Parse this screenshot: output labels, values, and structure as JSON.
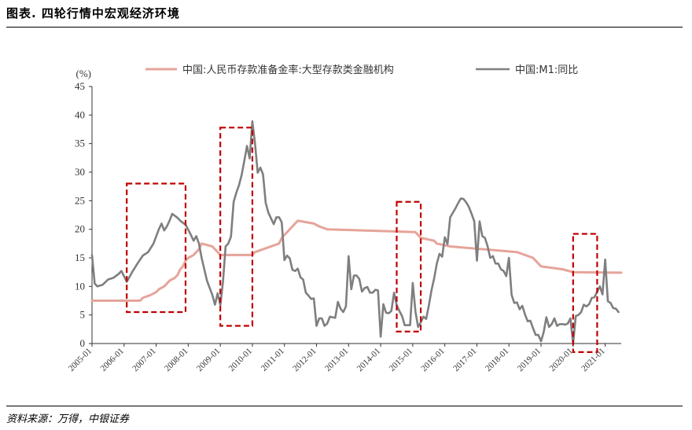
{
  "header": {
    "title": "图表. 四轮行情中宏观经济环境"
  },
  "footer": {
    "source": "资料来源：万得，中银证券"
  },
  "chart_data": {
    "type": "line",
    "ylabel": "(%)",
    "ylim": [
      0,
      45
    ],
    "yticks": [
      0,
      5,
      10,
      15,
      20,
      25,
      30,
      35,
      40,
      45
    ],
    "x_range": [
      "2005-01",
      "2021-07"
    ],
    "xticks": [
      "2005-01",
      "2006-01",
      "2007-01",
      "2008-01",
      "2009-01",
      "2010-01",
      "2011-01",
      "2012-01",
      "2013-01",
      "2014-01",
      "2015-01",
      "2016-01",
      "2017-01",
      "2018-01",
      "2019-01",
      "2020-01",
      "2021-01"
    ],
    "legend_position": "top",
    "grid": false,
    "series": [
      {
        "name": "中国:人民币存款准备金率:大型存款类金融机构",
        "color": "#e6a49a",
        "points": [
          [
            "2005-01",
            7.5
          ],
          [
            "2006-07",
            7.5
          ],
          [
            "2006-08",
            8
          ],
          [
            "2006-11",
            8.5
          ],
          [
            "2007-01",
            9
          ],
          [
            "2007-02",
            9.5
          ],
          [
            "2007-04",
            10
          ],
          [
            "2007-05",
            10.5
          ],
          [
            "2007-06",
            11
          ],
          [
            "2007-08",
            11.5
          ],
          [
            "2007-09",
            12
          ],
          [
            "2007-10",
            13
          ],
          [
            "2007-11",
            13.5
          ],
          [
            "2007-12",
            14.5
          ],
          [
            "2008-01",
            15
          ],
          [
            "2008-03",
            15.5
          ],
          [
            "2008-04",
            16
          ],
          [
            "2008-05",
            16.5
          ],
          [
            "2008-06",
            17.5
          ],
          [
            "2008-10",
            17
          ],
          [
            "2008-12",
            16
          ],
          [
            "2009-01",
            15.5
          ],
          [
            "2010-01",
            15.5
          ],
          [
            "2010-02",
            16
          ],
          [
            "2010-05",
            16.5
          ],
          [
            "2010-11",
            17.5
          ],
          [
            "2010-12",
            18.5
          ],
          [
            "2011-01",
            19
          ],
          [
            "2011-02",
            19.5
          ],
          [
            "2011-03",
            20
          ],
          [
            "2011-04",
            20.5
          ],
          [
            "2011-05",
            21
          ],
          [
            "2011-06",
            21.5
          ],
          [
            "2011-12",
            21
          ],
          [
            "2012-02",
            20.5
          ],
          [
            "2012-05",
            20
          ],
          [
            "2015-02",
            19.5
          ],
          [
            "2015-04",
            18.5
          ],
          [
            "2015-09",
            18
          ],
          [
            "2015-10",
            17.5
          ],
          [
            "2016-03",
            17
          ],
          [
            "2018-04",
            16
          ],
          [
            "2018-10",
            15
          ],
          [
            "2019-01",
            13.5
          ],
          [
            "2019-09",
            13
          ],
          [
            "2020-01",
            12.5
          ],
          [
            "2021-07",
            12.4
          ]
        ]
      },
      {
        "name": "中国:M1:同比",
        "color": "#7f7f7f",
        "points": [
          [
            "2005-01",
            15.5
          ],
          [
            "2005-02",
            10.5
          ],
          [
            "2005-03",
            10
          ],
          [
            "2005-05",
            10.3
          ],
          [
            "2005-07",
            11.2
          ],
          [
            "2005-09",
            11.5
          ],
          [
            "2005-11",
            12.2
          ],
          [
            "2005-12",
            12.7
          ],
          [
            "2006-02",
            10.8
          ],
          [
            "2006-04",
            12.5
          ],
          [
            "2006-06",
            14
          ],
          [
            "2006-08",
            15.4
          ],
          [
            "2006-10",
            16
          ],
          [
            "2006-12",
            17.5
          ],
          [
            "2007-02",
            20
          ],
          [
            "2007-03",
            21
          ],
          [
            "2007-04",
            19.8
          ],
          [
            "2007-05",
            20.5
          ],
          [
            "2007-06",
            21.5
          ],
          [
            "2007-07",
            22.7
          ],
          [
            "2007-09",
            22
          ],
          [
            "2007-10",
            21.5
          ],
          [
            "2007-12",
            20.8
          ],
          [
            "2008-02",
            19
          ],
          [
            "2008-03",
            18
          ],
          [
            "2008-04",
            18.8
          ],
          [
            "2008-05",
            17.5
          ],
          [
            "2008-06",
            15
          ],
          [
            "2008-08",
            11
          ],
          [
            "2008-10",
            8.5
          ],
          [
            "2008-11",
            6.8
          ],
          [
            "2008-12",
            8.8
          ],
          [
            "2009-01",
            6.7
          ],
          [
            "2009-02",
            10.9
          ],
          [
            "2009-03",
            17
          ],
          [
            "2009-04",
            17.5
          ],
          [
            "2009-05",
            18.7
          ],
          [
            "2009-06",
            24.8
          ],
          [
            "2009-07",
            26.4
          ],
          [
            "2009-08",
            27.7
          ],
          [
            "2009-09",
            29.5
          ],
          [
            "2009-10",
            32
          ],
          [
            "2009-11",
            34.6
          ],
          [
            "2009-12",
            32.4
          ],
          [
            "2010-01",
            38.9
          ],
          [
            "2010-02",
            35
          ],
          [
            "2010-03",
            29.9
          ],
          [
            "2010-04",
            30.8
          ],
          [
            "2010-05",
            29.6
          ],
          [
            "2010-06",
            24.6
          ],
          [
            "2010-07",
            22.9
          ],
          [
            "2010-08",
            21.9
          ],
          [
            "2010-09",
            20.9
          ],
          [
            "2010-10",
            22.1
          ],
          [
            "2010-11",
            22.1
          ],
          [
            "2010-12",
            21.2
          ],
          [
            "2011-01",
            14.6
          ],
          [
            "2011-02",
            15.4
          ],
          [
            "2011-03",
            14.9
          ],
          [
            "2011-04",
            12.9
          ],
          [
            "2011-05",
            12.7
          ],
          [
            "2011-06",
            13.1
          ],
          [
            "2011-07",
            11.6
          ],
          [
            "2011-08",
            11.2
          ],
          [
            "2011-09",
            8.9
          ],
          [
            "2011-10",
            8.4
          ],
          [
            "2011-11",
            7.8
          ],
          [
            "2011-12",
            7.9
          ],
          [
            "2012-01",
            3.1
          ],
          [
            "2012-02",
            4.4
          ],
          [
            "2012-03",
            4.4
          ],
          [
            "2012-04",
            3.1
          ],
          [
            "2012-05",
            3.5
          ],
          [
            "2012-06",
            4.7
          ],
          [
            "2012-07",
            4.6
          ],
          [
            "2012-08",
            4.5
          ],
          [
            "2012-09",
            7.3
          ],
          [
            "2012-10",
            6.1
          ],
          [
            "2012-11",
            5.5
          ],
          [
            "2012-12",
            6.5
          ],
          [
            "2013-01",
            15.3
          ],
          [
            "2013-02",
            9.5
          ],
          [
            "2013-03",
            11.9
          ],
          [
            "2013-04",
            11.9
          ],
          [
            "2013-05",
            11.3
          ],
          [
            "2013-06",
            9.1
          ],
          [
            "2013-07",
            9.7
          ],
          [
            "2013-08",
            9.9
          ],
          [
            "2013-09",
            8.9
          ],
          [
            "2013-10",
            8.9
          ],
          [
            "2013-11",
            9.4
          ],
          [
            "2013-12",
            9.3
          ],
          [
            "2014-01",
            1.2
          ],
          [
            "2014-02",
            6.9
          ],
          [
            "2014-03",
            5.4
          ],
          [
            "2014-04",
            5.3
          ],
          [
            "2014-05",
            5.7
          ],
          [
            "2014-06",
            8.9
          ],
          [
            "2014-07",
            6.7
          ],
          [
            "2014-08",
            5.7
          ],
          [
            "2014-09",
            4.8
          ],
          [
            "2014-10",
            3.2
          ],
          [
            "2014-11",
            3.2
          ],
          [
            "2014-12",
            3.2
          ],
          [
            "2015-01",
            10.6
          ],
          [
            "2015-02",
            5.6
          ],
          [
            "2015-03",
            2.9
          ],
          [
            "2015-04",
            3.7
          ],
          [
            "2015-05",
            4.7
          ],
          [
            "2015-06",
            4.3
          ],
          [
            "2015-07",
            6.6
          ],
          [
            "2015-08",
            9.3
          ],
          [
            "2015-09",
            11.4
          ],
          [
            "2015-10",
            14
          ],
          [
            "2015-11",
            15.7
          ],
          [
            "2015-12",
            15.2
          ],
          [
            "2016-01",
            18.6
          ],
          [
            "2016-02",
            17.4
          ],
          [
            "2016-03",
            22.1
          ],
          [
            "2016-04",
            22.9
          ],
          [
            "2016-05",
            23.7
          ],
          [
            "2016-06",
            24.6
          ],
          [
            "2016-07",
            25.4
          ],
          [
            "2016-08",
            25.3
          ],
          [
            "2016-09",
            24.7
          ],
          [
            "2016-10",
            23.9
          ],
          [
            "2016-11",
            22.7
          ],
          [
            "2016-12",
            21.4
          ],
          [
            "2017-01",
            14.5
          ],
          [
            "2017-02",
            21.4
          ],
          [
            "2017-03",
            18.8
          ],
          [
            "2017-04",
            18.5
          ],
          [
            "2017-05",
            17
          ],
          [
            "2017-06",
            15
          ],
          [
            "2017-07",
            15.3
          ],
          [
            "2017-08",
            14
          ],
          [
            "2017-09",
            14
          ],
          [
            "2017-10",
            13
          ],
          [
            "2017-11",
            12.7
          ],
          [
            "2017-12",
            11.8
          ],
          [
            "2018-01",
            15
          ],
          [
            "2018-02",
            8.5
          ],
          [
            "2018-03",
            7.1
          ],
          [
            "2018-04",
            7.2
          ],
          [
            "2018-05",
            6
          ],
          [
            "2018-06",
            6.6
          ],
          [
            "2018-07",
            5.1
          ],
          [
            "2018-08",
            3.9
          ],
          [
            "2018-09",
            4
          ],
          [
            "2018-10",
            2.7
          ],
          [
            "2018-11",
            1.5
          ],
          [
            "2018-12",
            1.5
          ],
          [
            "2019-01",
            0.4
          ],
          [
            "2019-02",
            2
          ],
          [
            "2019-03",
            4.6
          ],
          [
            "2019-04",
            2.9
          ],
          [
            "2019-05",
            3.4
          ],
          [
            "2019-06",
            4.4
          ],
          [
            "2019-07",
            3.1
          ],
          [
            "2019-08",
            3.4
          ],
          [
            "2019-09",
            3.4
          ],
          [
            "2019-10",
            3.3
          ],
          [
            "2019-11",
            3.5
          ],
          [
            "2019-12",
            4.4
          ],
          [
            "2020-01",
            0
          ],
          [
            "2020-02",
            4.8
          ],
          [
            "2020-03",
            5
          ],
          [
            "2020-04",
            5.5
          ],
          [
            "2020-05",
            6.8
          ],
          [
            "2020-06",
            6.5
          ],
          [
            "2020-07",
            6.9
          ],
          [
            "2020-08",
            8
          ],
          [
            "2020-09",
            8.1
          ],
          [
            "2020-10",
            9.1
          ],
          [
            "2020-11",
            10
          ],
          [
            "2020-12",
            8.6
          ],
          [
            "2021-01",
            14.7
          ],
          [
            "2021-02",
            7.4
          ],
          [
            "2021-03",
            7.1
          ],
          [
            "2021-04",
            6.2
          ],
          [
            "2021-05",
            6.1
          ],
          [
            "2021-06",
            5.5
          ]
        ]
      }
    ],
    "highlight_boxes": [
      {
        "x0": "2006-02",
        "x1": "2007-12",
        "y0": 5.5,
        "y1": 28
      },
      {
        "x0": "2009-01",
        "x1": "2010-01",
        "y0": 3.1,
        "y1": 37.8
      },
      {
        "x0": "2014-07",
        "x1": "2015-04",
        "y0": 2.1,
        "y1": 24.8
      },
      {
        "x0": "2020-01",
        "x1": "2020-10",
        "y0": -1.5,
        "y1": 19.2
      }
    ]
  }
}
